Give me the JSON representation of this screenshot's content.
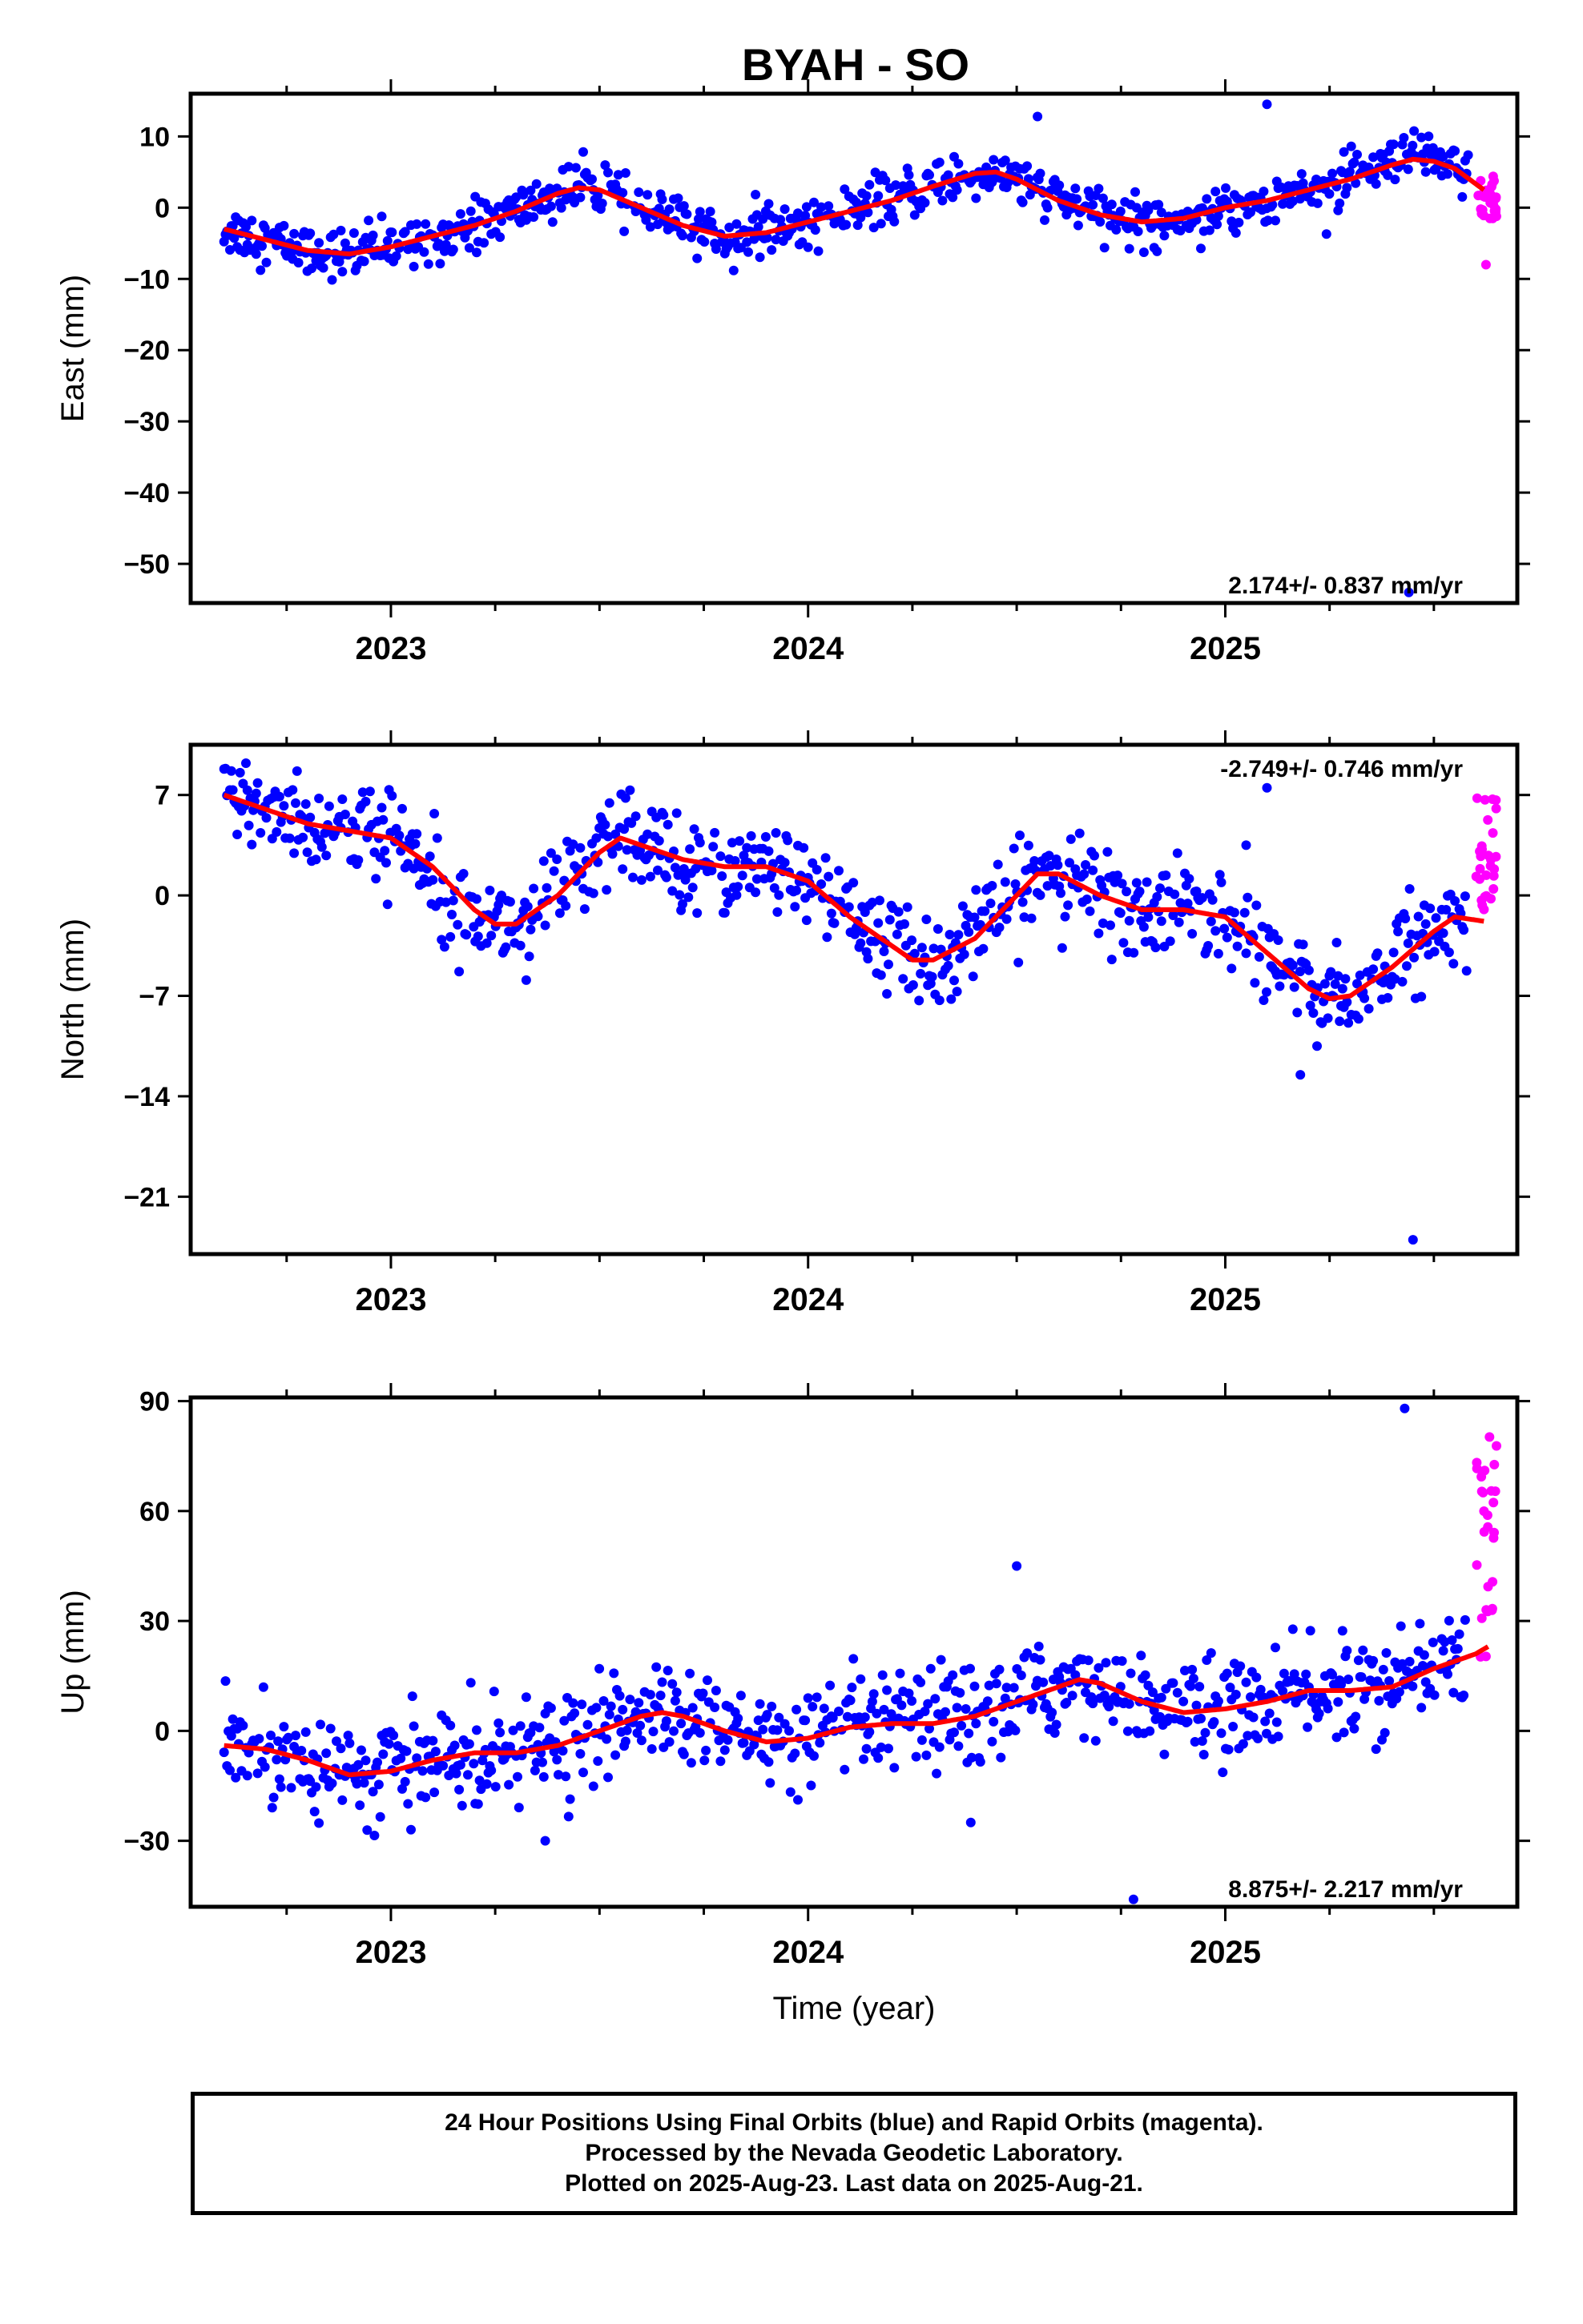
{
  "title": "BYAH - SO",
  "colors": {
    "final": "#0000ff",
    "rapid": "#ff00ff",
    "model": "#ff0000",
    "frame": "#000000"
  },
  "chart_data": [
    {
      "type": "scatter",
      "ylabel": "East (mm)",
      "xlim": [
        2022.52,
        2025.7
      ],
      "ylim": [
        -55.5,
        16
      ],
      "yticks": [
        10,
        0,
        -10,
        -20,
        -30,
        -40,
        -50
      ],
      "ytick_labels": [
        "10",
        "0",
        "−10",
        "−20",
        "−30",
        "−40",
        "−50"
      ],
      "xticks": [
        2023,
        2024,
        2025
      ],
      "xtick_labels": [
        "2023",
        "2024",
        "2025"
      ],
      "rate_label": "2.174+/- 0.837 mm/yr",
      "rate_position": "bottom-right",
      "model_curve": [
        [
          2022.6,
          -3
        ],
        [
          2022.7,
          -4.5
        ],
        [
          2022.8,
          -6
        ],
        [
          2022.9,
          -6.5
        ],
        [
          2023.0,
          -5.5
        ],
        [
          2023.1,
          -4
        ],
        [
          2023.2,
          -2.5
        ],
        [
          2023.3,
          -0.5
        ],
        [
          2023.4,
          2
        ],
        [
          2023.45,
          2.8
        ],
        [
          2023.5,
          2.5
        ],
        [
          2023.6,
          0
        ],
        [
          2023.7,
          -2.5
        ],
        [
          2023.8,
          -4
        ],
        [
          2023.9,
          -3.5
        ],
        [
          2024.0,
          -2
        ],
        [
          2024.1,
          -0.5
        ],
        [
          2024.2,
          1
        ],
        [
          2024.3,
          3
        ],
        [
          2024.4,
          4.8
        ],
        [
          2024.45,
          5
        ],
        [
          2024.5,
          4
        ],
        [
          2024.6,
          1
        ],
        [
          2024.7,
          -1
        ],
        [
          2024.8,
          -2
        ],
        [
          2024.9,
          -1.5
        ],
        [
          2025.0,
          0
        ],
        [
          2025.1,
          1
        ],
        [
          2025.2,
          2.5
        ],
        [
          2025.3,
          4
        ],
        [
          2025.4,
          6
        ],
        [
          2025.45,
          6.8
        ],
        [
          2025.5,
          6.5
        ],
        [
          2025.55,
          5.5
        ],
        [
          2025.62,
          2.5
        ]
      ],
      "final_noise": 1.7,
      "final_outliers": [
        [
          2024.55,
          12.8
        ],
        [
          2025.1,
          14.5
        ],
        [
          2025.44,
          -54
        ]
      ],
      "rapid_x": [
        2025.6,
        2025.65
      ],
      "rapid_range": [
        -2,
        5
      ],
      "rapid_extra": [
        [
          2025.625,
          -8
        ]
      ]
    },
    {
      "type": "scatter",
      "ylabel": "North (mm)",
      "xlim": [
        2022.52,
        2025.7
      ],
      "ylim": [
        -25,
        10.5
      ],
      "yticks": [
        7,
        0,
        -7,
        -14,
        -21
      ],
      "ytick_labels": [
        "7",
        "0",
        "−7",
        "−14",
        "−21"
      ],
      "xticks": [
        2023,
        2024,
        2025
      ],
      "xtick_labels": [
        "2023",
        "2024",
        "2025"
      ],
      "rate_label": "-2.749+/- 0.746 mm/yr",
      "rate_position": "top-right",
      "model_curve": [
        [
          2022.6,
          7
        ],
        [
          2022.7,
          6
        ],
        [
          2022.8,
          5
        ],
        [
          2022.9,
          4.5
        ],
        [
          2023.0,
          4
        ],
        [
          2023.1,
          2
        ],
        [
          2023.2,
          -1
        ],
        [
          2023.25,
          -2
        ],
        [
          2023.3,
          -2
        ],
        [
          2023.4,
          0
        ],
        [
          2023.5,
          3
        ],
        [
          2023.55,
          4
        ],
        [
          2023.6,
          3.5
        ],
        [
          2023.7,
          2.5
        ],
        [
          2023.8,
          2
        ],
        [
          2023.9,
          2
        ],
        [
          2024.0,
          1
        ],
        [
          2024.1,
          -1.5
        ],
        [
          2024.2,
          -3.5
        ],
        [
          2024.25,
          -4.5
        ],
        [
          2024.3,
          -4.5
        ],
        [
          2024.4,
          -3
        ],
        [
          2024.5,
          0
        ],
        [
          2024.55,
          1.5
        ],
        [
          2024.6,
          1.5
        ],
        [
          2024.7,
          0
        ],
        [
          2024.8,
          -1
        ],
        [
          2024.9,
          -1
        ],
        [
          2025.0,
          -1.5
        ],
        [
          2025.1,
          -4
        ],
        [
          2025.2,
          -6.5
        ],
        [
          2025.25,
          -7.2
        ],
        [
          2025.3,
          -7
        ],
        [
          2025.4,
          -5
        ],
        [
          2025.5,
          -2.5
        ],
        [
          2025.55,
          -1.5
        ],
        [
          2025.62,
          -1.8
        ]
      ],
      "final_noise": 1.6,
      "final_outliers": [
        [
          2025.1,
          7.5
        ],
        [
          2025.05,
          3.5
        ],
        [
          2025.18,
          -12.5
        ],
        [
          2025.22,
          -10.5
        ],
        [
          2025.45,
          -24
        ]
      ],
      "rapid_x": [
        2025.6,
        2025.65
      ],
      "rapid_range": [
        -1,
        7
      ],
      "rapid_extra": []
    },
    {
      "type": "scatter",
      "ylabel": "Up (mm)",
      "xlabel": "Time (year)",
      "xlim": [
        2022.52,
        2025.7
      ],
      "ylim": [
        -48,
        91
      ],
      "yticks": [
        90,
        60,
        30,
        0,
        -30
      ],
      "ytick_labels": [
        "90",
        "60",
        "30",
        "0",
        "−30"
      ],
      "xticks": [
        2023,
        2024,
        2025
      ],
      "xtick_labels": [
        "2023",
        "2024",
        "2025"
      ],
      "rate_label": "8.875+/- 2.217 mm/yr",
      "rate_position": "bottom-right",
      "model_curve": [
        [
          2022.6,
          -4
        ],
        [
          2022.7,
          -5
        ],
        [
          2022.8,
          -8
        ],
        [
          2022.9,
          -12
        ],
        [
          2023.0,
          -11
        ],
        [
          2023.1,
          -8
        ],
        [
          2023.2,
          -6
        ],
        [
          2023.3,
          -6
        ],
        [
          2023.4,
          -4
        ],
        [
          2023.5,
          0
        ],
        [
          2023.6,
          4
        ],
        [
          2023.65,
          5
        ],
        [
          2023.7,
          4
        ],
        [
          2023.8,
          0
        ],
        [
          2023.9,
          -3
        ],
        [
          2024.0,
          -2
        ],
        [
          2024.1,
          1
        ],
        [
          2024.2,
          2
        ],
        [
          2024.3,
          2
        ],
        [
          2024.4,
          4
        ],
        [
          2024.5,
          8
        ],
        [
          2024.6,
          12
        ],
        [
          2024.65,
          14
        ],
        [
          2024.7,
          13
        ],
        [
          2024.8,
          8
        ],
        [
          2024.9,
          5
        ],
        [
          2025.0,
          6
        ],
        [
          2025.1,
          8
        ],
        [
          2025.2,
          11
        ],
        [
          2025.3,
          11
        ],
        [
          2025.4,
          12
        ],
        [
          2025.5,
          17
        ],
        [
          2025.6,
          21
        ],
        [
          2025.63,
          23
        ]
      ],
      "final_noise": 6.5,
      "final_outliers": [
        [
          2024.5,
          45
        ],
        [
          2025.43,
          88
        ],
        [
          2024.78,
          -46
        ],
        [
          2023.37,
          -30
        ],
        [
          2024.39,
          -25
        ]
      ],
      "rapid_x": [
        2025.6,
        2025.65
      ],
      "rapid_range": [
        20,
        85
      ],
      "rapid_extra": []
    }
  ],
  "footer": {
    "line1": "24 Hour Positions Using Final Orbits (blue) and Rapid Orbits (magenta).",
    "line2": "Processed by the Nevada Geodetic Laboratory.",
    "line3": "Plotted on 2025-Aug-23. Last data on 2025-Aug-21."
  }
}
